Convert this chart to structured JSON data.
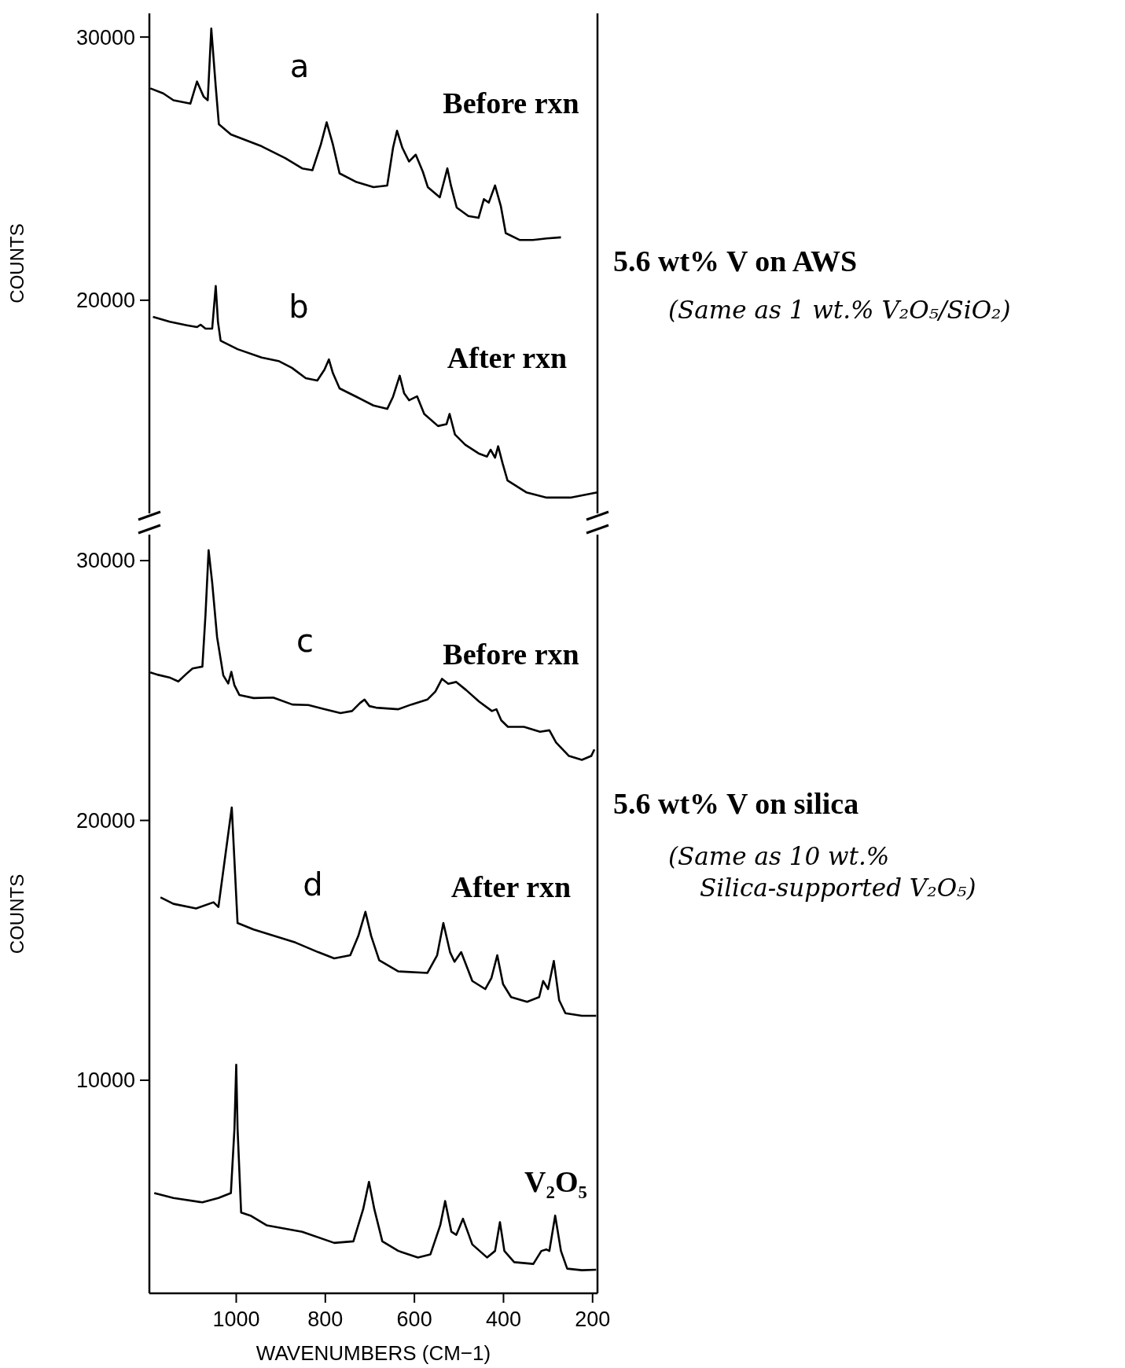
{
  "chart_data": [
    {
      "type": "line",
      "ylabel": "COUNTS",
      "xlim": [
        1195,
        189
      ],
      "ylim": [
        11900,
        30900
      ],
      "yticks": [
        20000,
        30000
      ],
      "tick_labels": "y",
      "grid": false,
      "marker": "none",
      "line_style": "solid",
      "x": [
        1193,
        1164,
        1141,
        1103,
        1088,
        1073,
        1064,
        1056,
        1046,
        1039,
        1012,
        943,
        890,
        852,
        829,
        810,
        797,
        783,
        768,
        730,
        692,
        661,
        648,
        639,
        627,
        612,
        597,
        581,
        570,
        543,
        532,
        526,
        518,
        505,
        479,
        456,
        444,
        433,
        419,
        406,
        395,
        364,
        334,
        303,
        271
      ],
      "series": [
        {
          "name": "a",
          "color": "#000000",
          "values": [
            28050,
            27860,
            27600,
            27470,
            28310,
            27730,
            27600,
            30320,
            28120,
            26690,
            26300,
            25850,
            25400,
            25010,
            24940,
            25920,
            26760,
            25920,
            24820,
            24490,
            24300,
            24360,
            25790,
            26440,
            25790,
            25270,
            25530,
            24880,
            24300,
            23910,
            24620,
            25010,
            24360,
            23520,
            23200,
            23130,
            23840,
            23710,
            24360,
            23580,
            22550,
            22290,
            22290,
            22350,
            22390
          ]
        },
        {
          "name": "b",
          "color": "#000000",
          "x": [
            1187,
            1149,
            1111,
            1088,
            1080,
            1069,
            1054,
            1046,
            1041,
            1035,
            997,
            943,
            905,
            875,
            844,
            818,
            802,
            792,
            783,
            768,
            730,
            692,
            661,
            648,
            633,
            623,
            612,
            594,
            578,
            547,
            528,
            521,
            509,
            486,
            456,
            437,
            429,
            419,
            412,
            402,
            391,
            349,
            303,
            250,
            189
          ],
          "values": [
            19370,
            19180,
            19050,
            18980,
            19070,
            18920,
            18920,
            20540,
            19180,
            18460,
            18140,
            17820,
            17690,
            17430,
            17040,
            16950,
            17360,
            17750,
            17230,
            16650,
            16330,
            16000,
            15870,
            16330,
            17130,
            16460,
            16200,
            16350,
            15680,
            15220,
            15290,
            15680,
            14900,
            14510,
            14180,
            14060,
            14320,
            14020,
            14450,
            13800,
            13150,
            12700,
            12500,
            12500,
            12700
          ]
        }
      ],
      "annotations": [
        "Before rxn",
        "After rxn",
        "5.6 wt% V on AWS",
        "(Same as 1 wt.% V₂O₅/SiO₂)"
      ]
    },
    {
      "type": "line",
      "xlabel": "WAVENUMBERS (CM−1)",
      "ylabel": "COUNTS",
      "xlim": [
        1195,
        189
      ],
      "xticks": [
        1000,
        800,
        600,
        400,
        200
      ],
      "ylim": [
        1800,
        31000
      ],
      "yticks": [
        10000,
        20000,
        30000
      ],
      "grid": false,
      "marker": "none",
      "line_style": "solid",
      "series": [
        {
          "name": "c",
          "color": "#000000",
          "x": [
            1193,
            1177,
            1148,
            1130,
            1112,
            1098,
            1076,
            1069,
            1062,
            1054,
            1043,
            1029,
            1018,
            1011,
            1004,
            993,
            961,
            917,
            874,
            838,
            802,
            766,
            740,
            722,
            712,
            701,
            686,
            636,
            607,
            571,
            553,
            538,
            524,
            506,
            484,
            455,
            426,
            416,
            405,
            390,
            354,
            318,
            297,
            282,
            253,
            224,
            203,
            196
          ],
          "values": [
            25700,
            25610,
            25490,
            25350,
            25640,
            25850,
            25920,
            27920,
            30400,
            29160,
            27060,
            25580,
            25270,
            25720,
            25200,
            24830,
            24710,
            24730,
            24460,
            24440,
            24280,
            24130,
            24210,
            24520,
            24650,
            24400,
            24340,
            24280,
            24460,
            24650,
            24960,
            25450,
            25260,
            25330,
            25020,
            24580,
            24210,
            24280,
            23850,
            23600,
            23600,
            23410,
            23470,
            23000,
            22480,
            22330,
            22480,
            22730
          ]
        },
        {
          "name": "d",
          "color": "#000000",
          "x": [
            1170,
            1141,
            1090,
            1051,
            1040,
            1010,
            997,
            961,
            867,
            816,
            780,
            744,
            726,
            710,
            697,
            679,
            636,
            571,
            549,
            535,
            520,
            510,
            495,
            470,
            441,
            427,
            414,
            401,
            383,
            347,
            320,
            311,
            300,
            287,
            275,
            261,
            224,
            192
          ],
          "values": [
            17040,
            16790,
            16610,
            16850,
            16670,
            20500,
            16050,
            15800,
            15300,
            14930,
            14690,
            14810,
            15550,
            16480,
            15550,
            14620,
            14190,
            14130,
            14810,
            16050,
            14930,
            14560,
            14930,
            13820,
            13510,
            13940,
            14810,
            13700,
            13200,
            13020,
            13200,
            13820,
            13510,
            14590,
            13080,
            12580,
            12480,
            12480
          ]
        },
        {
          "name": "V₂O₅",
          "color": "#000000",
          "x": [
            1184,
            1141,
            1076,
            1040,
            1012,
            1004,
            1000,
            997,
            989,
            968,
            932,
            852,
            780,
            737,
            715,
            702,
            690,
            672,
            636,
            592,
            564,
            542,
            531,
            517,
            506,
            491,
            470,
            437,
            419,
            408,
            398,
            376,
            333,
            315,
            304,
            297,
            284,
            271,
            257,
            224,
            192
          ],
          "values": [
            5660,
            5470,
            5300,
            5470,
            5660,
            8130,
            10600,
            8130,
            4910,
            4790,
            4420,
            4170,
            3740,
            3800,
            5040,
            6090,
            5040,
            3800,
            3430,
            3180,
            3300,
            4420,
            5350,
            4170,
            4050,
            4670,
            3680,
            3180,
            3430,
            4540,
            3430,
            3000,
            2930,
            3430,
            3490,
            3430,
            4790,
            3430,
            2750,
            2690,
            2710
          ]
        }
      ],
      "annotations": [
        "Before rxn",
        "After rxn",
        "5.6 wt% V on silica",
        "(Same as 10 wt.% Silica-supported V₂O₅)"
      ]
    }
  ]
}
